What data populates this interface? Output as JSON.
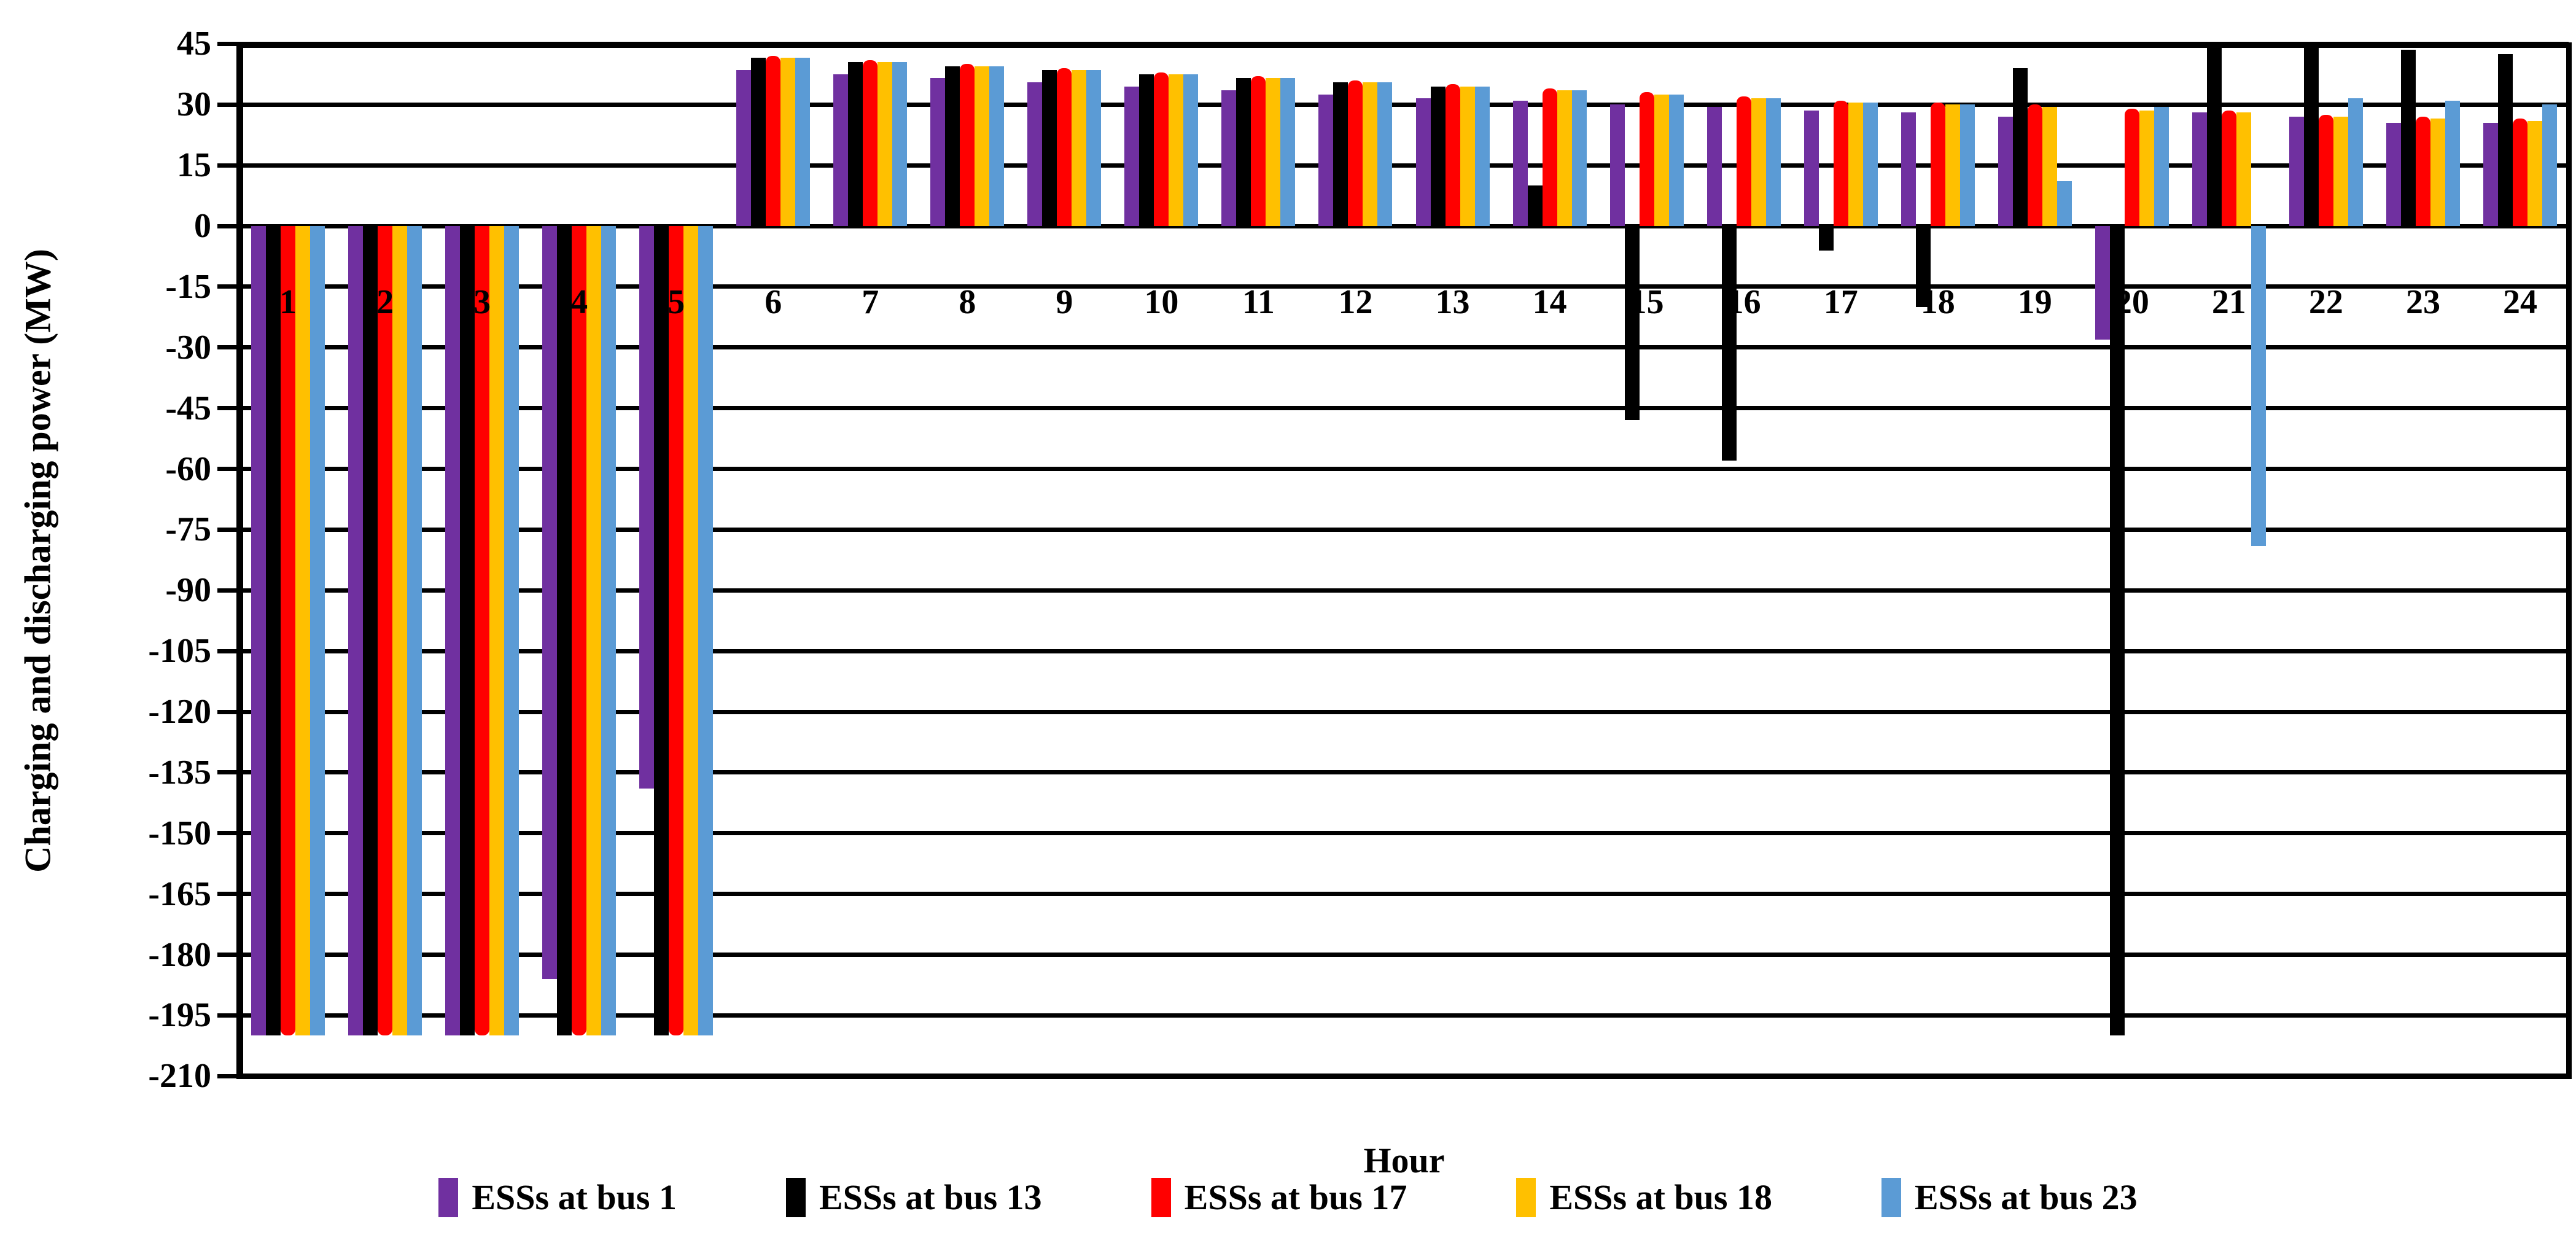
{
  "chart_data": {
    "type": "bar",
    "title": "",
    "xlabel": "Hour",
    "ylabel": "Charging and discharging power (MW)",
    "ylim": [
      -210,
      45
    ],
    "ytick_step": 15,
    "yticks": [
      45,
      30,
      15,
      0,
      -15,
      -30,
      -45,
      -60,
      -75,
      -90,
      -105,
      -120,
      -135,
      -150,
      -165,
      -180,
      -195,
      -210
    ],
    "grid": "horizontal",
    "legend_position": "bottom",
    "categories": [
      1,
      2,
      3,
      4,
      5,
      6,
      7,
      8,
      9,
      10,
      11,
      12,
      13,
      14,
      15,
      16,
      17,
      18,
      19,
      20,
      21,
      22,
      23,
      24
    ],
    "series": [
      {
        "name": "ESSs at bus 1",
        "color": "#7030A0",
        "values": [
          -200,
          -200,
          -200,
          -186,
          -139,
          38.5,
          37.5,
          36.5,
          35.5,
          34.5,
          33.5,
          32.5,
          31.5,
          31,
          30,
          29.5,
          28.5,
          28,
          27,
          -28,
          28,
          27,
          25.5,
          25.5
        ]
      },
      {
        "name": "ESSs at bus 13",
        "color": "#000000",
        "values": [
          -200,
          -200,
          -200,
          -200,
          -200,
          41.5,
          40.5,
          39.5,
          38.5,
          37.5,
          36.5,
          35.5,
          34.5,
          10,
          -48,
          -58,
          -6,
          -20,
          39,
          -200,
          45.5,
          45.5,
          43.5,
          42.5
        ]
      },
      {
        "name": "ESSs at bus 17",
        "color": "#FF0000",
        "values": [
          -200,
          -200,
          -200,
          -200,
          -200,
          42,
          41,
          40,
          39,
          38,
          37,
          36,
          35,
          34,
          33,
          32,
          31,
          30.5,
          30,
          29,
          28.5,
          27.5,
          27,
          26.5
        ]
      },
      {
        "name": "ESSs at bus 18",
        "color": "#FFC000",
        "values": [
          -200,
          -200,
          -200,
          -200,
          -200,
          41.5,
          40.5,
          39.5,
          38.5,
          37.5,
          36.5,
          35.5,
          34.5,
          33.5,
          32.5,
          31.5,
          30.5,
          30,
          29.5,
          28.5,
          28,
          27,
          26.5,
          26
        ]
      },
      {
        "name": "ESSs at bus 23",
        "color": "#5B9BD5",
        "values": [
          -200,
          -200,
          -200,
          -200,
          -200,
          41.5,
          40.5,
          39.5,
          38.5,
          37.5,
          36.5,
          35.5,
          34.5,
          33.5,
          32.5,
          31.5,
          30.5,
          30,
          11,
          29.5,
          -79,
          31.5,
          31,
          30
        ]
      }
    ]
  }
}
